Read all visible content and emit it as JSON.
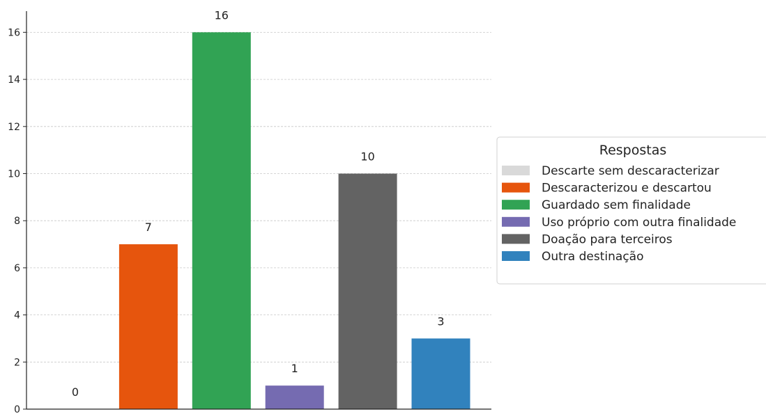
{
  "chart_data": {
    "type": "bar",
    "categories": [
      "Descarte sem descaracterizar",
      "Descaracterizou e descartou",
      "Guardado sem finalidade",
      "Uso próprio com outra finalidade",
      "Doação para terceiros",
      "Outra destinação"
    ],
    "values": [
      0,
      7,
      16,
      1,
      10,
      3
    ],
    "data_labels": [
      "0",
      "7",
      "16",
      "1",
      "10",
      "3"
    ],
    "colors": [
      "#d9d9d9",
      "#e6550d",
      "#31a354",
      "#756bb1",
      "#636363",
      "#3182bd"
    ],
    "title": "",
    "xlabel": "",
    "ylabel": "",
    "ylim": [
      0,
      17
    ],
    "yticks": [
      0,
      2,
      4,
      6,
      8,
      10,
      12,
      14,
      16
    ],
    "ytick_labels": [
      "0",
      "2",
      "4",
      "6",
      "8",
      "10",
      "12",
      "14",
      "16"
    ],
    "grid": "y dashed",
    "legend": {
      "title": "Respostas",
      "placement": "right"
    }
  }
}
